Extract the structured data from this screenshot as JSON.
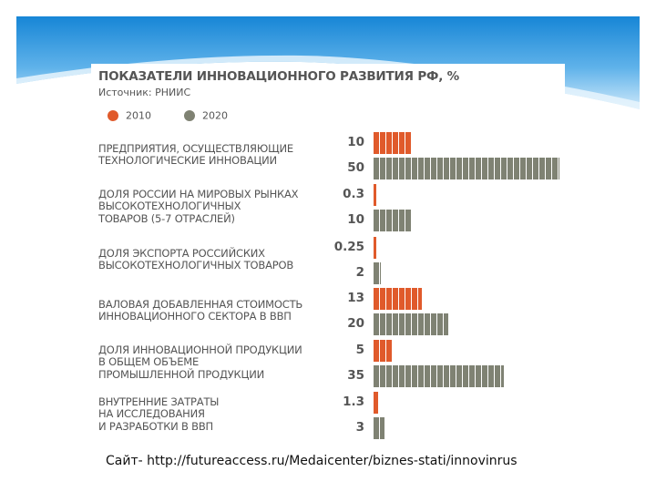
{
  "chart_data": {
    "type": "bar",
    "title": "ПОКАЗАТЕЛИ ИННОВАЦИОННОГО РАЗВИТИЯ РФ, %",
    "subtitle": "Источник: РНИИС",
    "legend_position": "top-left",
    "grid": false,
    "categories": [
      [
        "ПРЕДПРИЯТИЯ, ОСУЩЕСТВЛЯЮЩИЕ",
        "ТЕХНОЛОГИЧЕСКИЕ ИННОВАЦИИ"
      ],
      [
        "ДОЛЯ РОССИИ НА МИРОВЫХ РЫНКАХ",
        "ВЫСОКОТЕХНОЛОГИЧНЫХ",
        "ТОВАРОВ (5-7 ОТРАСЛЕЙ)"
      ],
      [
        "ДОЛЯ ЭКСПОРТА РОССИЙСКИХ",
        "ВЫСОКОТЕХНОЛОГИЧНЫХ ТОВАРОВ"
      ],
      [
        "ВАЛОВАЯ ДОБАВЛЕННАЯ СТОИМОСТЬ",
        "ИННОВАЦИОННОГО СЕКТОРА В ВВП"
      ],
      [
        "ДОЛЯ ИННОВАЦИОННОЙ ПРОДУКЦИИ",
        "В ОБЩЕМ ОБЪЕМЕ",
        "ПРОМЫШЛЕННОЙ ПРОДУКЦИИ"
      ],
      [
        "ВНУТРЕННИЕ ЗАТРАТЫ",
        "НА ИССЛЕДОВАНИЯ",
        "И РАЗРАБОТКИ В ВВП"
      ]
    ],
    "series": [
      {
        "name": "2010",
        "color": "#e05a2b",
        "values": [
          10,
          0.3,
          0.25,
          13,
          5,
          1.3
        ],
        "labels": [
          "10",
          "0.3",
          "0.25",
          "13",
          "5",
          "1.3"
        ]
      },
      {
        "name": "2020",
        "color": "#7f8273",
        "values": [
          50,
          10,
          2,
          20,
          35,
          3
        ],
        "labels": [
          "50",
          "10",
          "2",
          "20",
          "35",
          "3"
        ]
      }
    ],
    "xlim": [
      0,
      50
    ]
  },
  "source_caption": "Сайт- http://futureaccess.ru/Medaicenter/biznes-stati/innovinrus",
  "colors": {
    "banner_top": "#1a8ad8",
    "banner_bottom": "#bfe2f8",
    "orange": "#e05a2b",
    "gray": "#7f8273"
  }
}
